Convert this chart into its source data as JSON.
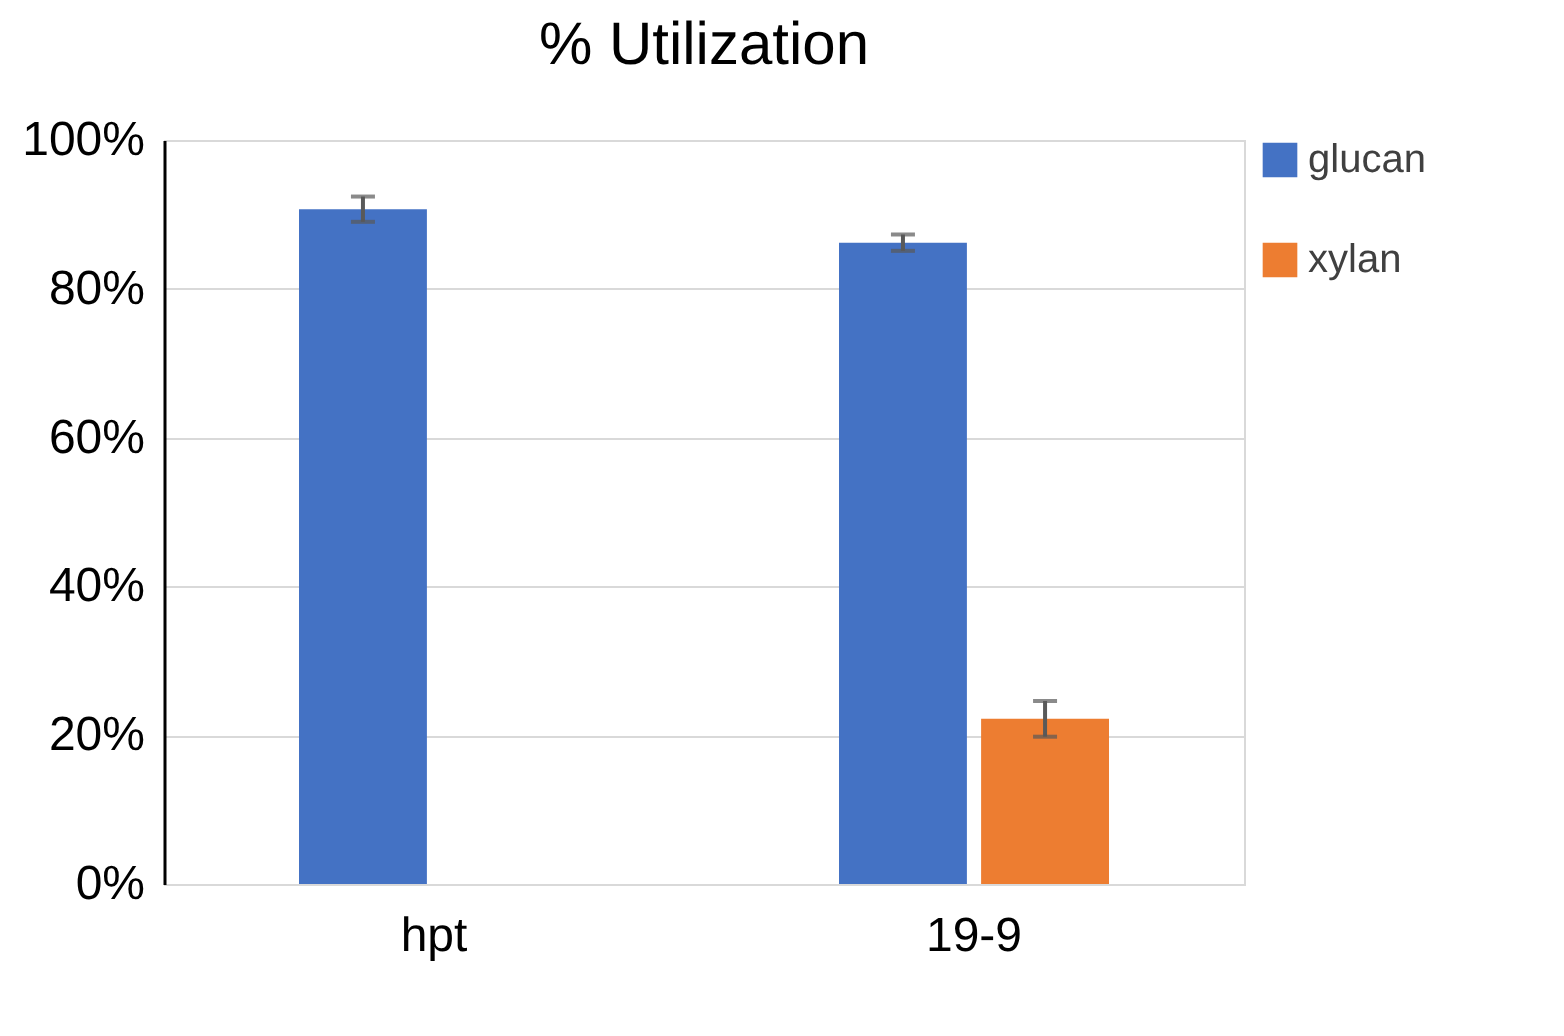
{
  "chart_data": {
    "type": "bar",
    "title": "% Utilization",
    "categories": [
      "hpt",
      "19-9"
    ],
    "series": [
      {
        "name": "glucan",
        "color": "#4472c4",
        "values": [
          90.7,
          86.2
        ],
        "errors": [
          1.7,
          1.1
        ]
      },
      {
        "name": "xylan",
        "color": "#ed7d31",
        "values": [
          null,
          22.2
        ],
        "errors": [
          null,
          2.4
        ]
      }
    ],
    "ylim": [
      0,
      100
    ],
    "yticks": [
      {
        "value": 0,
        "label": "0%"
      },
      {
        "value": 20,
        "label": "20%"
      },
      {
        "value": 40,
        "label": "40%"
      },
      {
        "value": 60,
        "label": "60%"
      },
      {
        "value": 80,
        "label": "80%"
      },
      {
        "value": 100,
        "label": "100%"
      }
    ],
    "grid": "y",
    "legend": "right"
  }
}
